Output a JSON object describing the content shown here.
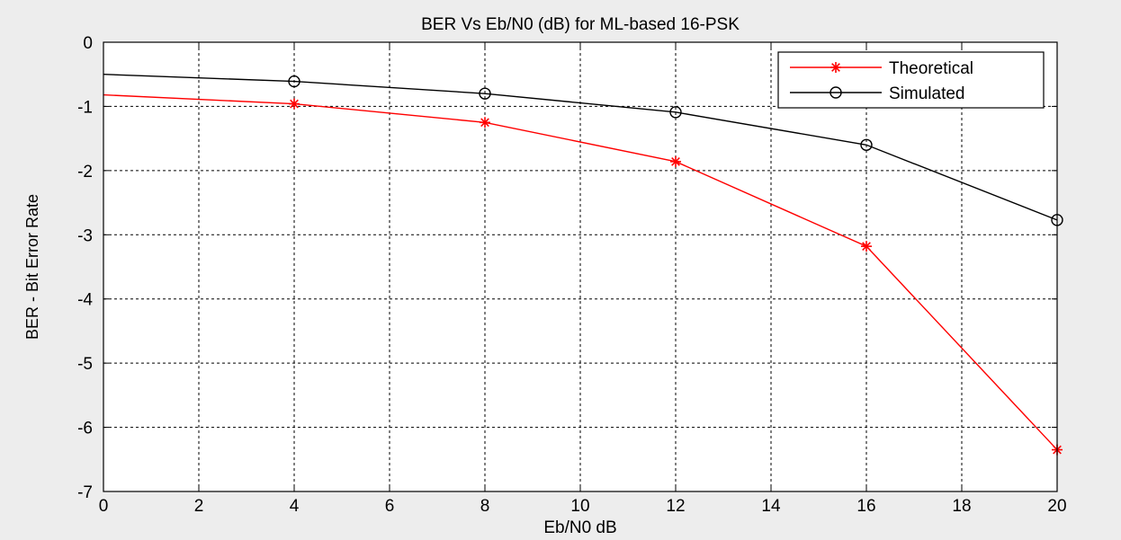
{
  "chart_data": {
    "type": "line",
    "title": "BER Vs Eb/N0 (dB) for ML-based 16-PSK",
    "xlabel": "Eb/N0 dB",
    "ylabel": "BER - Bit Error Rate",
    "xlim": [
      0,
      20
    ],
    "ylim": [
      -7,
      0
    ],
    "xticks": [
      0,
      2,
      4,
      6,
      8,
      10,
      12,
      14,
      16,
      18,
      20
    ],
    "yticks": [
      0,
      -1,
      -2,
      -3,
      -4,
      -5,
      -6,
      -7
    ],
    "grid": true,
    "legend_position": "top-right",
    "series": [
      {
        "name": "Theoretical",
        "color": "#ff0000",
        "marker": "asterisk",
        "x": [
          0,
          4,
          8,
          12,
          16,
          20
        ],
        "y": [
          -0.82,
          -0.96,
          -1.25,
          -1.86,
          -3.18,
          -6.35
        ],
        "marker_x": [
          4,
          8,
          12,
          16,
          20
        ]
      },
      {
        "name": "Simulated",
        "color": "#000000",
        "marker": "circle",
        "x": [
          0,
          4,
          8,
          12,
          16,
          20
        ],
        "y": [
          -0.5,
          -0.61,
          -0.8,
          -1.09,
          -1.6,
          -2.77
        ],
        "marker_x": [
          4,
          8,
          12,
          16,
          20
        ]
      }
    ]
  }
}
